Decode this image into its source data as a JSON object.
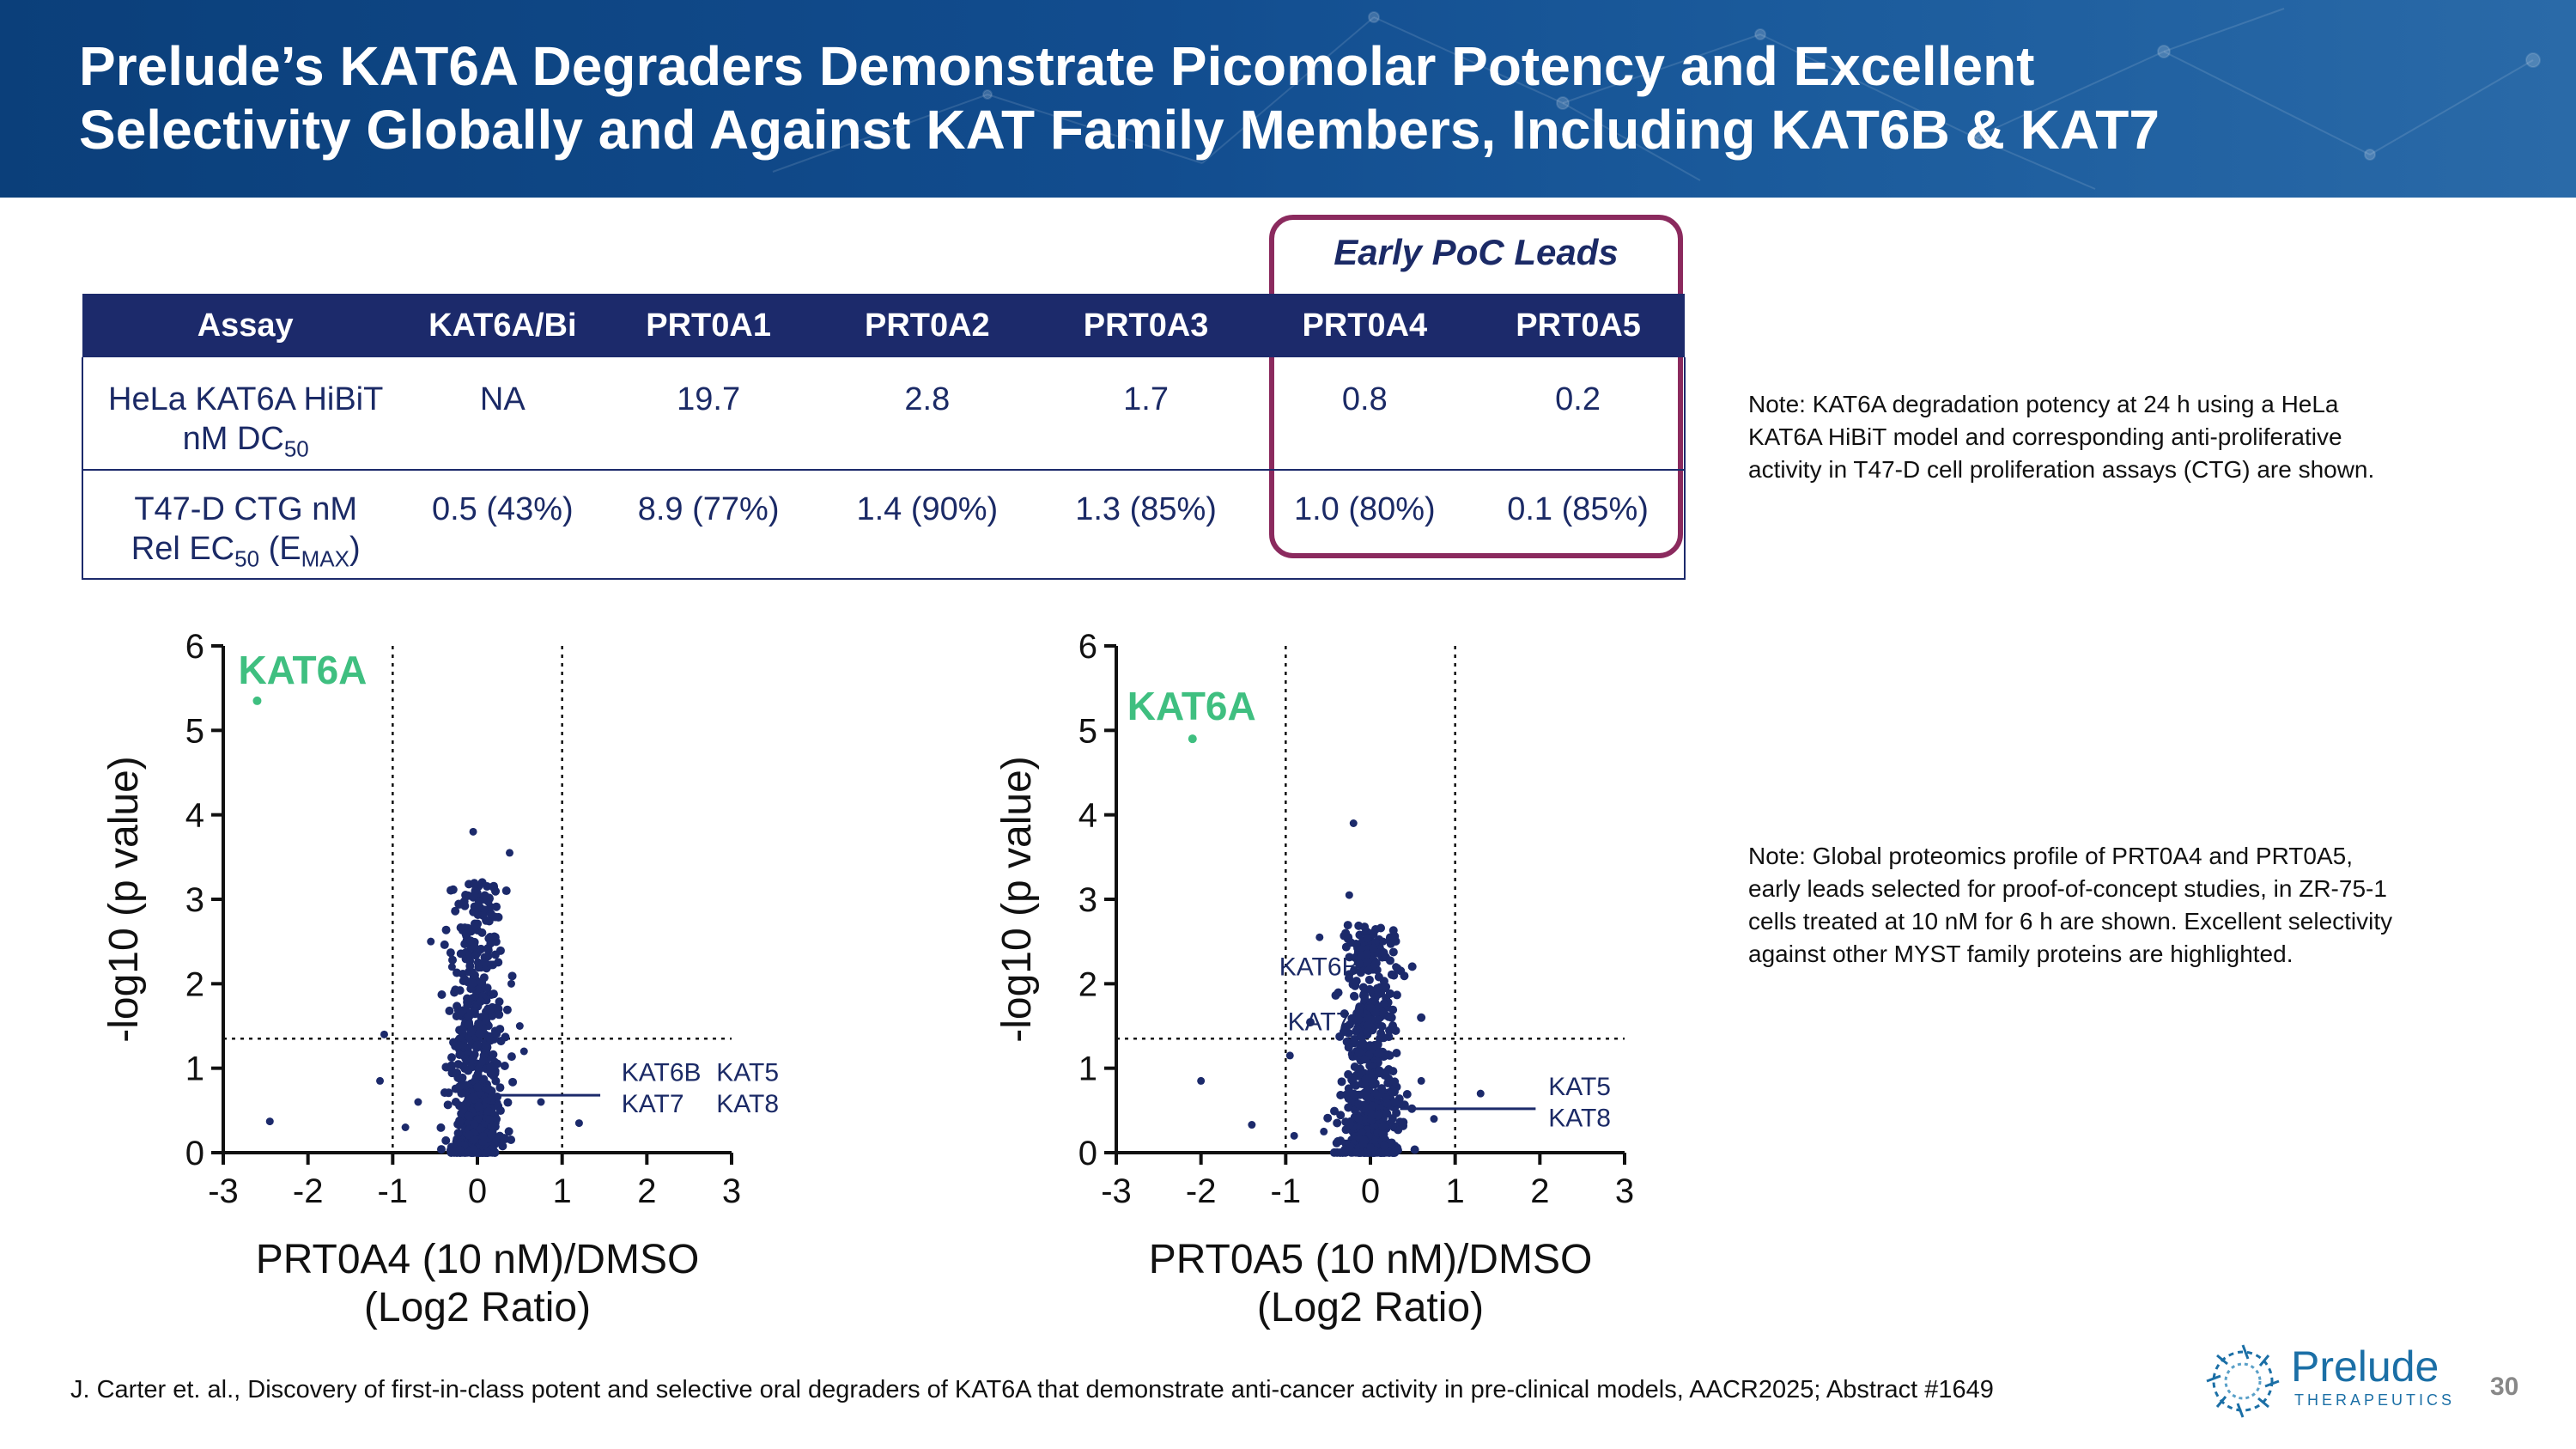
{
  "header": {
    "title_line1": "Prelude’s KAT6A Degraders Demonstrate Picomolar Potency and Excellent",
    "title_line2": "Selectivity Globally and Against KAT Family Members, Including KAT6B & KAT7"
  },
  "poc_label": "Early PoC Leads",
  "table": {
    "headers": [
      "Assay",
      "KAT6A/Bi",
      "PRT0A1",
      "PRT0A2",
      "PRT0A3",
      "PRT0A4",
      "PRT0A5"
    ],
    "row1": {
      "assay_line1": "HeLa KAT6A HiBiT",
      "assay_line2_pre": "nM DC",
      "assay_line2_sub": "50",
      "values": [
        "NA",
        "19.7",
        "2.8",
        "1.7",
        "0.8",
        "0.2"
      ]
    },
    "row2": {
      "assay_line1": "T47-D CTG nM",
      "assay_line2_pre": "Rel EC",
      "assay_line2_sub": "50",
      "assay_line2_mid": " (E",
      "assay_line2_sub2": "MAX",
      "assay_line2_post": ")",
      "values": [
        "0.5 (43%)",
        "8.9 (77%)",
        "1.4 (90%)",
        "1.3 (85%)",
        "1.0 (80%)",
        "0.1 (85%)"
      ]
    }
  },
  "notes": {
    "note1": [
      "Note:  KAT6A degradation potency at 24 h using a HeLa",
      "KAT6A HiBiT model and corresponding anti-proliferative",
      "activity in T47-D cell proliferation assays (CTG) are shown."
    ],
    "note2": [
      "Note:  Global proteomics profile of PRT0A4 and PRT0A5,",
      "early leads selected for proof-of-concept studies, in ZR-75-1",
      "cells treated at 10 nM for 6 h are shown. Excellent selectivity",
      "against other MYST family proteins are highlighted."
    ]
  },
  "citation": "J. Carter et. al., Discovery of first-in-class potent and selective oral degraders of KAT6A that demonstrate anti-cancer activity in pre-clinical models, AACR2025; Abstract #1649",
  "page_number": "30",
  "logo": {
    "name": "Prelude",
    "sub": "THERAPEUTICS"
  },
  "chart_data": [
    {
      "type": "scatter",
      "xlabel_line1": "PRT0A4 (10 nM)/DMSO",
      "xlabel_line2": "(Log2 Ratio)",
      "ylabel": "-log10 (p value)",
      "xlim": [
        -3,
        3
      ],
      "ylim": [
        0,
        6
      ],
      "xticks": [
        "-3",
        "-2",
        "-1",
        "0",
        "1",
        "2",
        "3"
      ],
      "yticks": [
        "0",
        "1",
        "2",
        "3",
        "4",
        "5",
        "6"
      ],
      "threshold_x": [
        -1,
        1
      ],
      "threshold_y": 1.35,
      "highlight": {
        "label": "KAT6A",
        "x": -2.6,
        "y": 5.35,
        "color": "#3fbf80"
      },
      "annotations": {
        "a": "KAT6B",
        "b": "KAT5",
        "c": "KAT7",
        "d": "KAT8",
        "pointer_x": 0.25,
        "pointer_y": 0.68
      },
      "points_color": "#1c2a6b",
      "outliers": [
        [
          -2.45,
          0.37
        ],
        [
          -1.1,
          1.4
        ],
        [
          -1.15,
          0.85
        ],
        [
          -0.85,
          0.3
        ],
        [
          -0.55,
          2.5
        ],
        [
          0.38,
          3.55
        ],
        [
          0.75,
          0.6
        ],
        [
          0.4,
          2.0
        ],
        [
          0.5,
          1.5
        ],
        [
          1.2,
          0.35
        ],
        [
          -0.3,
          2.2
        ],
        [
          -0.05,
          3.8
        ],
        [
          0.55,
          1.2
        ],
        [
          -0.7,
          0.6
        ]
      ],
      "cluster": {
        "cx": 0.0,
        "sx": 0.15,
        "ymax": 3.2,
        "n": 700
      }
    },
    {
      "type": "scatter",
      "xlabel_line1": "PRT0A5 (10 nM)/DMSO",
      "xlabel_line2": "(Log2 Ratio)",
      "ylabel": "-log10 (p value)",
      "xlim": [
        -3,
        3
      ],
      "ylim": [
        0,
        6
      ],
      "xticks": [
        "-3",
        "-2",
        "-1",
        "0",
        "1",
        "2",
        "3"
      ],
      "yticks": [
        "0",
        "1",
        "2",
        "3",
        "4",
        "5",
        "6"
      ],
      "threshold_x": [
        -1,
        1
      ],
      "threshold_y": 1.35,
      "highlight": {
        "label": "KAT6A",
        "x": -2.1,
        "y": 4.9,
        "color": "#3fbf80"
      },
      "annotations": {
        "a": "KAT6B",
        "b": "KAT7",
        "c": "KAT5",
        "d": "KAT8",
        "kat6b_x": -0.55,
        "kat6b_y": 2.1,
        "kat7_x": -0.45,
        "kat7_y": 1.45,
        "pointer_x": 0.35,
        "pointer_y": 0.52
      },
      "points_color": "#1c2a6b",
      "outliers": [
        [
          -2.0,
          0.85
        ],
        [
          -1.4,
          0.33
        ],
        [
          -0.95,
          1.15
        ],
        [
          -0.6,
          2.55
        ],
        [
          -0.2,
          3.9
        ],
        [
          -0.25,
          3.05
        ],
        [
          0.15,
          2.5
        ],
        [
          0.3,
          2.2
        ],
        [
          0.75,
          0.4
        ],
        [
          1.3,
          0.7
        ],
        [
          -0.9,
          0.2
        ],
        [
          0.6,
          0.85
        ],
        [
          -0.55,
          0.25
        ]
      ],
      "cluster": {
        "cx": 0.0,
        "sx": 0.17,
        "ymax": 2.7,
        "n": 700
      }
    }
  ]
}
